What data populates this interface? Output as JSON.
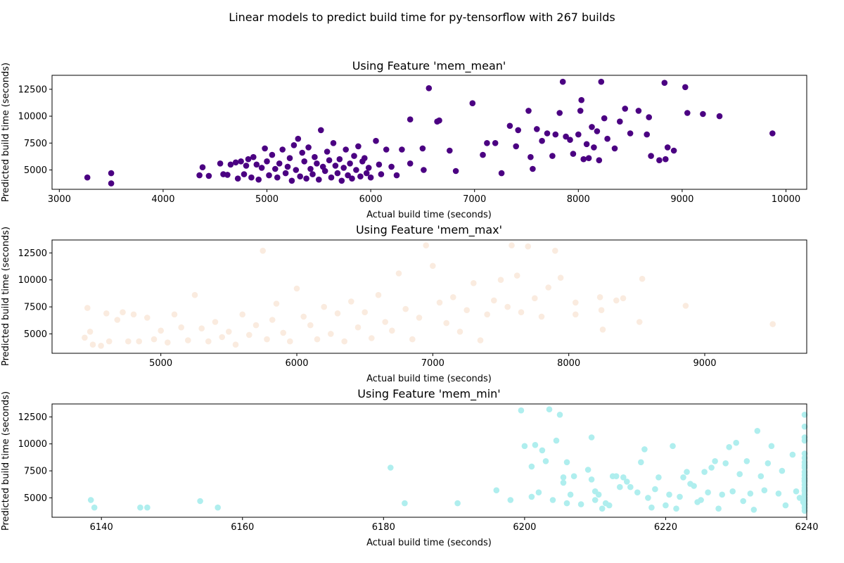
{
  "figure": {
    "title": "Linear models to predict build time for py-tensorflow with 267 builds"
  },
  "chart_data": [
    {
      "type": "scatter",
      "title": "Using Feature 'mem_mean'",
      "xlabel": "Actual build time (seconds)",
      "ylabel": "Predicted build time (seconds)",
      "color": "#4b0082",
      "xlim": [
        2930,
        10200
      ],
      "ylim": [
        3200,
        13800
      ],
      "xticks": [
        3000,
        4000,
        5000,
        6000,
        7000,
        8000,
        9000,
        10000
      ],
      "yticks": [
        5000,
        7500,
        10000,
        12500
      ],
      "points": [
        [
          3270,
          4300
        ],
        [
          3500,
          4700
        ],
        [
          3500,
          3750
        ],
        [
          4380,
          5250
        ],
        [
          4350,
          4500
        ],
        [
          4440,
          4450
        ],
        [
          4550,
          5600
        ],
        [
          4580,
          4600
        ],
        [
          4620,
          4550
        ],
        [
          4650,
          5500
        ],
        [
          4700,
          5700
        ],
        [
          4720,
          4200
        ],
        [
          4750,
          5800
        ],
        [
          4780,
          4600
        ],
        [
          4800,
          5400
        ],
        [
          4820,
          6000
        ],
        [
          4850,
          4300
        ],
        [
          4870,
          6200
        ],
        [
          4900,
          5500
        ],
        [
          4920,
          4100
        ],
        [
          4950,
          5200
        ],
        [
          4980,
          7000
        ],
        [
          5000,
          5800
        ],
        [
          5020,
          4500
        ],
        [
          5050,
          6400
        ],
        [
          5080,
          5100
        ],
        [
          5100,
          4300
        ],
        [
          5120,
          5600
        ],
        [
          5150,
          6900
        ],
        [
          5180,
          4700
        ],
        [
          5200,
          5300
        ],
        [
          5220,
          6100
        ],
        [
          5240,
          4000
        ],
        [
          5260,
          7300
        ],
        [
          5280,
          5000
        ],
        [
          5300,
          7900
        ],
        [
          5320,
          4400
        ],
        [
          5340,
          6600
        ],
        [
          5360,
          5800
        ],
        [
          5380,
          4200
        ],
        [
          5400,
          7100
        ],
        [
          5420,
          5100
        ],
        [
          5440,
          4600
        ],
        [
          5460,
          6200
        ],
        [
          5480,
          5600
        ],
        [
          5500,
          4100
        ],
        [
          5520,
          8700
        ],
        [
          5540,
          5300
        ],
        [
          5560,
          4900
        ],
        [
          5580,
          6700
        ],
        [
          5600,
          5900
        ],
        [
          5620,
          4300
        ],
        [
          5640,
          7500
        ],
        [
          5660,
          5400
        ],
        [
          5680,
          4700
        ],
        [
          5700,
          6000
        ],
        [
          5720,
          4000
        ],
        [
          5740,
          5200
        ],
        [
          5760,
          6900
        ],
        [
          5780,
          4500
        ],
        [
          5800,
          5600
        ],
        [
          5820,
          4200
        ],
        [
          5840,
          6300
        ],
        [
          5860,
          5000
        ],
        [
          5880,
          7200
        ],
        [
          5900,
          4400
        ],
        [
          5920,
          5800
        ],
        [
          5940,
          6100
        ],
        [
          5960,
          4700
        ],
        [
          5980,
          5200
        ],
        [
          6000,
          4300
        ],
        [
          6050,
          7700
        ],
        [
          6080,
          5500
        ],
        [
          6100,
          4600
        ],
        [
          6150,
          6900
        ],
        [
          6200,
          5300
        ],
        [
          6250,
          4500
        ],
        [
          6300,
          6900
        ],
        [
          6380,
          5600
        ],
        [
          6380,
          9700
        ],
        [
          6500,
          7000
        ],
        [
          6510,
          5000
        ],
        [
          6560,
          12600
        ],
        [
          6640,
          9500
        ],
        [
          6660,
          9600
        ],
        [
          6760,
          6800
        ],
        [
          6820,
          4900
        ],
        [
          6980,
          11200
        ],
        [
          7080,
          6400
        ],
        [
          7120,
          7500
        ],
        [
          7200,
          7500
        ],
        [
          7260,
          4700
        ],
        [
          7340,
          9100
        ],
        [
          7400,
          7200
        ],
        [
          7420,
          8700
        ],
        [
          7520,
          10500
        ],
        [
          7540,
          6200
        ],
        [
          7560,
          5100
        ],
        [
          7600,
          8800
        ],
        [
          7650,
          7700
        ],
        [
          7700,
          8400
        ],
        [
          7750,
          6300
        ],
        [
          7780,
          8300
        ],
        [
          7820,
          10300
        ],
        [
          7850,
          13200
        ],
        [
          7880,
          8100
        ],
        [
          7920,
          7800
        ],
        [
          7950,
          6500
        ],
        [
          8000,
          8300
        ],
        [
          8020,
          10500
        ],
        [
          8030,
          11500
        ],
        [
          8050,
          6000
        ],
        [
          8080,
          7400
        ],
        [
          8100,
          6100
        ],
        [
          8130,
          9000
        ],
        [
          8150,
          7100
        ],
        [
          8180,
          8600
        ],
        [
          8200,
          5900
        ],
        [
          8220,
          13200
        ],
        [
          8250,
          9800
        ],
        [
          8280,
          7900
        ],
        [
          8350,
          7000
        ],
        [
          8400,
          9500
        ],
        [
          8450,
          10700
        ],
        [
          8500,
          8400
        ],
        [
          8580,
          10500
        ],
        [
          8660,
          8300
        ],
        [
          8680,
          9900
        ],
        [
          8700,
          6300
        ],
        [
          8780,
          5900
        ],
        [
          8830,
          13100
        ],
        [
          8840,
          6000
        ],
        [
          8860,
          7100
        ],
        [
          8920,
          6800
        ],
        [
          9030,
          12700
        ],
        [
          9050,
          10300
        ],
        [
          9200,
          10200
        ],
        [
          9360,
          10000
        ],
        [
          9870,
          8400
        ]
      ]
    },
    {
      "type": "scatter",
      "title": "Using Feature 'mem_max'",
      "xlabel": "Actual build time (seconds)",
      "ylabel": "Predicted build time (seconds)",
      "color": "#faebdf",
      "xlim": [
        4200,
        9750
      ],
      "ylim": [
        3200,
        13700
      ],
      "xticks": [
        5000,
        6000,
        7000,
        8000,
        9000
      ],
      "yticks": [
        5000,
        7500,
        10000,
        12500
      ],
      "points": [
        [
          4440,
          4650
        ],
        [
          4460,
          7400
        ],
        [
          4480,
          5200
        ],
        [
          4500,
          4000
        ],
        [
          4560,
          3900
        ],
        [
          4600,
          6900
        ],
        [
          4620,
          4300
        ],
        [
          4680,
          6300
        ],
        [
          4720,
          7000
        ],
        [
          4760,
          4300
        ],
        [
          4800,
          6800
        ],
        [
          4840,
          4300
        ],
        [
          4900,
          6500
        ],
        [
          4950,
          4500
        ],
        [
          5000,
          5300
        ],
        [
          5050,
          4200
        ],
        [
          5100,
          6800
        ],
        [
          5150,
          5600
        ],
        [
          5200,
          4400
        ],
        [
          5250,
          8600
        ],
        [
          5300,
          5500
        ],
        [
          5350,
          4300
        ],
        [
          5400,
          6100
        ],
        [
          5450,
          4700
        ],
        [
          5500,
          5200
        ],
        [
          5550,
          4000
        ],
        [
          5600,
          6800
        ],
        [
          5650,
          4900
        ],
        [
          5700,
          5800
        ],
        [
          5750,
          12700
        ],
        [
          5780,
          4500
        ],
        [
          5820,
          6300
        ],
        [
          5850,
          7800
        ],
        [
          5900,
          5100
        ],
        [
          5950,
          4300
        ],
        [
          6000,
          9200
        ],
        [
          6050,
          6600
        ],
        [
          6100,
          5800
        ],
        [
          6150,
          4500
        ],
        [
          6200,
          7500
        ],
        [
          6250,
          5000
        ],
        [
          6300,
          6900
        ],
        [
          6350,
          4300
        ],
        [
          6400,
          8000
        ],
        [
          6450,
          5600
        ],
        [
          6500,
          7000
        ],
        [
          6550,
          4600
        ],
        [
          6600,
          8600
        ],
        [
          6650,
          6100
        ],
        [
          6700,
          5300
        ],
        [
          6750,
          10600
        ],
        [
          6800,
          7300
        ],
        [
          6850,
          4500
        ],
        [
          6900,
          6500
        ],
        [
          6950,
          13200
        ],
        [
          7000,
          11300
        ],
        [
          7050,
          7900
        ],
        [
          7100,
          6000
        ],
        [
          7150,
          8400
        ],
        [
          7200,
          5200
        ],
        [
          7250,
          7200
        ],
        [
          7300,
          9700
        ],
        [
          7350,
          4400
        ],
        [
          7400,
          6800
        ],
        [
          7450,
          8100
        ],
        [
          7500,
          10000
        ],
        [
          7550,
          7500
        ],
        [
          7580,
          13200
        ],
        [
          7620,
          10400
        ],
        [
          7650,
          7000
        ],
        [
          7700,
          13100
        ],
        [
          7750,
          8300
        ],
        [
          7800,
          6600
        ],
        [
          7850,
          9300
        ],
        [
          7900,
          12700
        ],
        [
          7940,
          10200
        ],
        [
          8050,
          7900
        ],
        [
          8050,
          6800
        ],
        [
          8230,
          8400
        ],
        [
          8240,
          7200
        ],
        [
          8250,
          5400
        ],
        [
          8350,
          8100
        ],
        [
          8400,
          8300
        ],
        [
          8520,
          6100
        ],
        [
          8540,
          10100
        ],
        [
          8860,
          7600
        ],
        [
          9500,
          5900
        ]
      ]
    },
    {
      "type": "scatter",
      "title": "Using Feature 'mem_min'",
      "xlabel": "Actual build time (seconds)",
      "ylabel": "Predicted build time (seconds)",
      "color": "#afeeee",
      "xlim": [
        6133,
        6240
      ],
      "ylim": [
        3200,
        13700
      ],
      "xticks": [
        6140,
        6160,
        6180,
        6200,
        6220,
        6240
      ],
      "yticks": [
        5000,
        7500,
        10000,
        12500
      ],
      "points": [
        [
          6138.5,
          4800
        ],
        [
          6139,
          4100
        ],
        [
          6145.5,
          4100
        ],
        [
          6146.5,
          4100
        ],
        [
          6154,
          4700
        ],
        [
          6156.5,
          4100
        ],
        [
          6181,
          7800
        ],
        [
          6183,
          4500
        ],
        [
          6190.5,
          4500
        ],
        [
          6196,
          5700
        ],
        [
          6198,
          4800
        ],
        [
          6199.5,
          13100
        ],
        [
          6200,
          9800
        ],
        [
          6201,
          7900
        ],
        [
          6201,
          5100
        ],
        [
          6201.5,
          9900
        ],
        [
          6202,
          5500
        ],
        [
          6202.5,
          9400
        ],
        [
          6203,
          8400
        ],
        [
          6203.5,
          13200
        ],
        [
          6204,
          4800
        ],
        [
          6204.5,
          10300
        ],
        [
          6205,
          12700
        ],
        [
          6205.5,
          6900
        ],
        [
          6205.5,
          6400
        ],
        [
          6206,
          4500
        ],
        [
          6206,
          8300
        ],
        [
          6206.5,
          5300
        ],
        [
          6207,
          7000
        ],
        [
          6208,
          4400
        ],
        [
          6209,
          7600
        ],
        [
          6209.5,
          10600
        ],
        [
          6209.5,
          6700
        ],
        [
          6210,
          5600
        ],
        [
          6210,
          4800
        ],
        [
          6210.5,
          5300
        ],
        [
          6211,
          4000
        ],
        [
          6211.5,
          4500
        ],
        [
          6212,
          4300
        ],
        [
          6212.5,
          7000
        ],
        [
          6213,
          7000
        ],
        [
          6213.5,
          6000
        ],
        [
          6214,
          6900
        ],
        [
          6214.5,
          6500
        ],
        [
          6215,
          6000
        ],
        [
          6216,
          5500
        ],
        [
          6216.5,
          8300
        ],
        [
          6217,
          9500
        ],
        [
          6217.5,
          5000
        ],
        [
          6218,
          4100
        ],
        [
          6218.5,
          5800
        ],
        [
          6219,
          6900
        ],
        [
          6220,
          4300
        ],
        [
          6220.5,
          5300
        ],
        [
          6221,
          9800
        ],
        [
          6221.5,
          4000
        ],
        [
          6222,
          5100
        ],
        [
          6222.5,
          6900
        ],
        [
          6223,
          7400
        ],
        [
          6223.5,
          6300
        ],
        [
          6224,
          6100
        ],
        [
          6224.5,
          4600
        ],
        [
          6225,
          4800
        ],
        [
          6225.5,
          7400
        ],
        [
          6226,
          5500
        ],
        [
          6226.5,
          7800
        ],
        [
          6227,
          8400
        ],
        [
          6227.5,
          4000
        ],
        [
          6228,
          5300
        ],
        [
          6228.5,
          8200
        ],
        [
          6229,
          9700
        ],
        [
          6229.5,
          5600
        ],
        [
          6230,
          10100
        ],
        [
          6230.5,
          7200
        ],
        [
          6231,
          4700
        ],
        [
          6231.5,
          8400
        ],
        [
          6232,
          5400
        ],
        [
          6232.5,
          3900
        ],
        [
          6233,
          11200
        ],
        [
          6233.5,
          7000
        ],
        [
          6234,
          5700
        ],
        [
          6234.5,
          8200
        ],
        [
          6235,
          9800
        ],
        [
          6236,
          5400
        ],
        [
          6236.5,
          7500
        ],
        [
          6237,
          4300
        ],
        [
          6238,
          9000
        ],
        [
          6238.5,
          5600
        ],
        [
          6239,
          5000
        ],
        [
          6239.5,
          4600
        ],
        [
          6240,
          5700
        ],
        [
          6240,
          4400
        ],
        [
          6241,
          5300
        ],
        [
          6242,
          6800
        ],
        [
          6242.5,
          6600
        ],
        [
          6243,
          4800
        ],
        [
          6244,
          5700
        ],
        [
          6244,
          12700
        ],
        [
          6244,
          11600
        ],
        [
          6244,
          10600
        ],
        [
          6244,
          10300
        ],
        [
          6244,
          9100
        ],
        [
          6244,
          8700
        ],
        [
          6244,
          8300
        ],
        [
          6244,
          8000
        ],
        [
          6244,
          7800
        ],
        [
          6244,
          7400
        ],
        [
          6244,
          7100
        ],
        [
          6244,
          6800
        ],
        [
          6244,
          6500
        ],
        [
          6244,
          6200
        ],
        [
          6244,
          5900
        ],
        [
          6244,
          5600
        ],
        [
          6244,
          5300
        ],
        [
          6244,
          5000
        ],
        [
          6244,
          4700
        ],
        [
          6244,
          4400
        ],
        [
          6244,
          4100
        ],
        [
          6244,
          3800
        ]
      ]
    }
  ]
}
